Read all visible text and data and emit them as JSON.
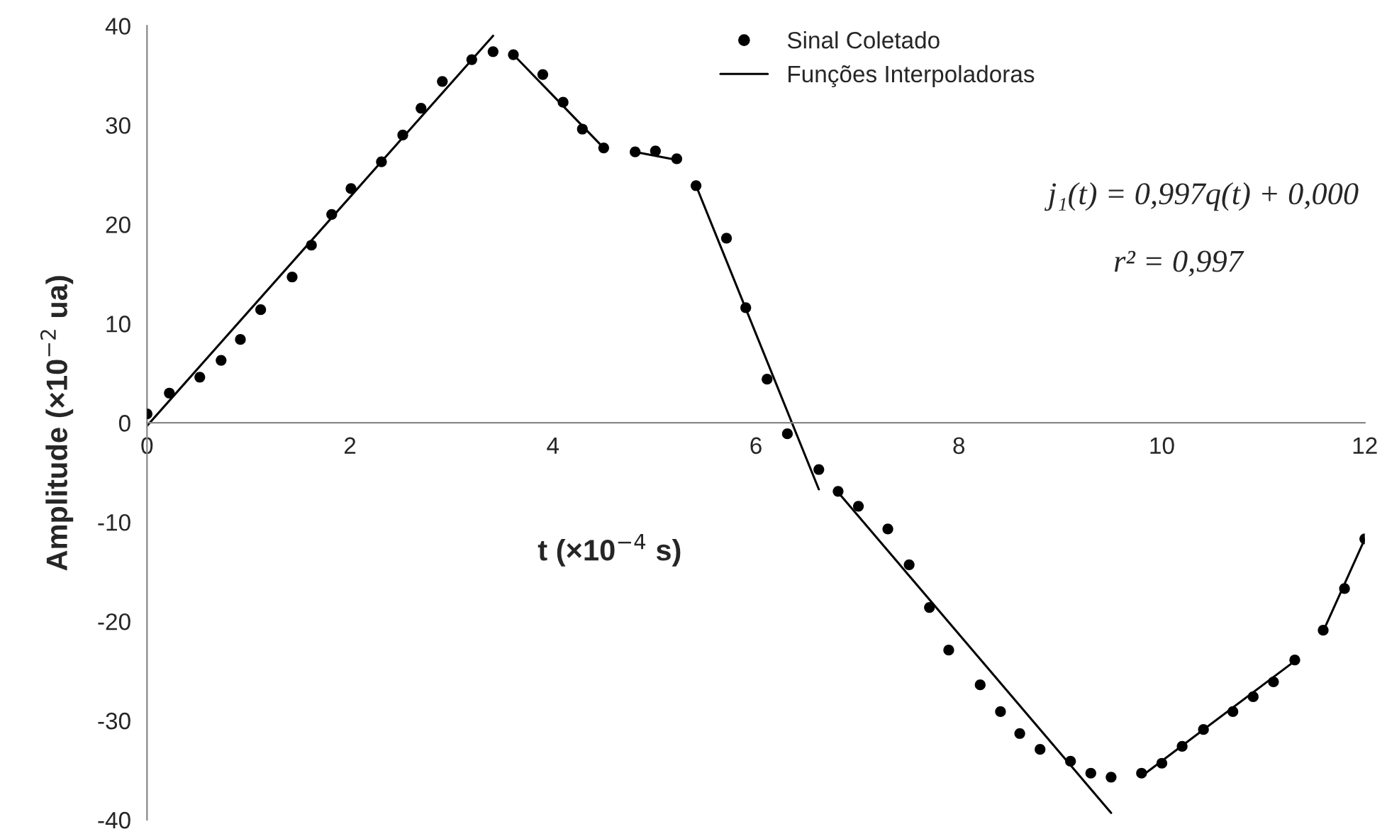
{
  "chart_data": {
    "type": "scatter",
    "xlabel": "t (×10$^{−4}$ s)",
    "ylabel": "Amplitude (×10$^{−2}$ ua)",
    "xlim": [
      0,
      12
    ],
    "xticks": [
      0,
      2,
      4,
      6,
      8,
      10,
      12
    ],
    "ylim": [
      -40,
      40
    ],
    "yticks": [
      -40,
      -30,
      -20,
      -10,
      0,
      10,
      20,
      30,
      40
    ],
    "grid": false,
    "legend": "top",
    "marker": "circle",
    "series": [
      {
        "name": "Sinal Coletado",
        "color": "#000000",
        "x": [
          0.0,
          0.22,
          0.52,
          0.73,
          0.92,
          1.12,
          1.43,
          1.62,
          1.82,
          2.01,
          2.31,
          2.52,
          2.7,
          2.91,
          3.2,
          3.41,
          3.61,
          3.9,
          4.1,
          4.29,
          4.5,
          4.81,
          5.01,
          5.22,
          5.41,
          5.71,
          5.9,
          6.11,
          6.31,
          6.62,
          6.81,
          7.01,
          7.3,
          7.51,
          7.71,
          7.9,
          8.21,
          8.41,
          8.6,
          8.8,
          9.1,
          9.3,
          9.5,
          9.8,
          10.0,
          10.2,
          10.41,
          10.7,
          10.9,
          11.1,
          11.31,
          11.59,
          11.8,
          12.0
        ],
        "values": [
          0.9,
          3.0,
          4.6,
          6.3,
          8.4,
          11.4,
          14.7,
          17.9,
          21.0,
          23.6,
          26.3,
          29.0,
          31.7,
          34.4,
          36.6,
          37.4,
          37.1,
          35.1,
          32.3,
          29.6,
          27.7,
          27.3,
          27.4,
          26.6,
          23.9,
          18.6,
          11.6,
          4.4,
          -1.1,
          -4.7,
          -6.9,
          -8.4,
          -10.7,
          -14.3,
          -18.6,
          -22.9,
          -26.4,
          -29.1,
          -31.3,
          -32.9,
          -34.1,
          -35.3,
          -35.7,
          -35.3,
          -34.3,
          -32.6,
          -30.9,
          -29.1,
          -27.6,
          -26.1,
          -23.9,
          -20.9,
          -16.7,
          -11.7
        ]
      },
      {
        "name": "Funções Interpoladoras",
        "type": "line",
        "color": "#000000",
        "marker": "none",
        "line_style": "solid",
        "x": [
          0.0,
          3.41,
          3.5,
          3.61,
          4.5,
          4.65,
          4.81,
          5.22,
          5.3,
          5.41,
          6.62,
          6.7,
          6.81,
          9.5,
          9.65,
          9.8,
          11.31,
          11.45,
          11.59,
          12.0
        ],
        "values": [
          -0.3,
          39.0,
          null,
          37.1,
          27.7,
          null,
          27.3,
          26.5,
          null,
          23.9,
          -6.7,
          null,
          -7.0,
          -39.3,
          null,
          -35.6,
          -24.0,
          null,
          -21.0,
          -11.7
        ]
      }
    ],
    "annotations": [
      "j₁(t) = 0,997q(t) + 0,000",
      "r² = 0,997"
    ]
  }
}
